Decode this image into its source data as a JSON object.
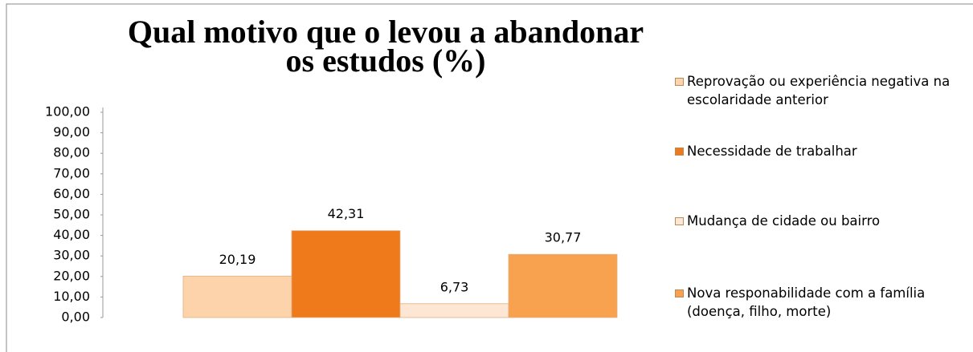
{
  "chart_data": {
    "type": "bar",
    "title": [
      "Qual motivo que o levou a abandonar",
      "os estudos (%)"
    ],
    "series": [
      {
        "name": "Reprovação ou experiência negativa na escolaridade anterior",
        "color": "#fcd3ab",
        "values": [
          20.19
        ],
        "value_labels": [
          "20,19"
        ]
      },
      {
        "name": "Necessidade de trabalhar",
        "color": "#ef7a1b",
        "values": [
          42.31
        ],
        "value_labels": [
          "42,31"
        ]
      },
      {
        "name": "Mudança de cidade ou bairro",
        "color": "#fde6d3",
        "values": [
          6.73
        ],
        "value_labels": [
          "6,73"
        ]
      },
      {
        "name": "Nova responabilidade com a família (doença, filho, morte)",
        "color": "#f8a24f",
        "values": [
          30.77
        ],
        "value_labels": [
          "30,77"
        ]
      }
    ],
    "ylim": [
      0,
      100
    ],
    "yticks": [
      {
        "value": 0,
        "label": "0,00"
      },
      {
        "value": 10,
        "label": "10,00"
      },
      {
        "value": 20,
        "label": "20,00"
      },
      {
        "value": 30,
        "label": "30,00"
      },
      {
        "value": 40,
        "label": "40,00"
      },
      {
        "value": 50,
        "label": "50,00"
      },
      {
        "value": 60,
        "label": "60,00"
      },
      {
        "value": 70,
        "label": "70,00"
      },
      {
        "value": 80,
        "label": "80,00"
      },
      {
        "value": 90,
        "label": "90,00"
      },
      {
        "value": 100,
        "label": "100,00"
      }
    ],
    "legend": "right"
  }
}
